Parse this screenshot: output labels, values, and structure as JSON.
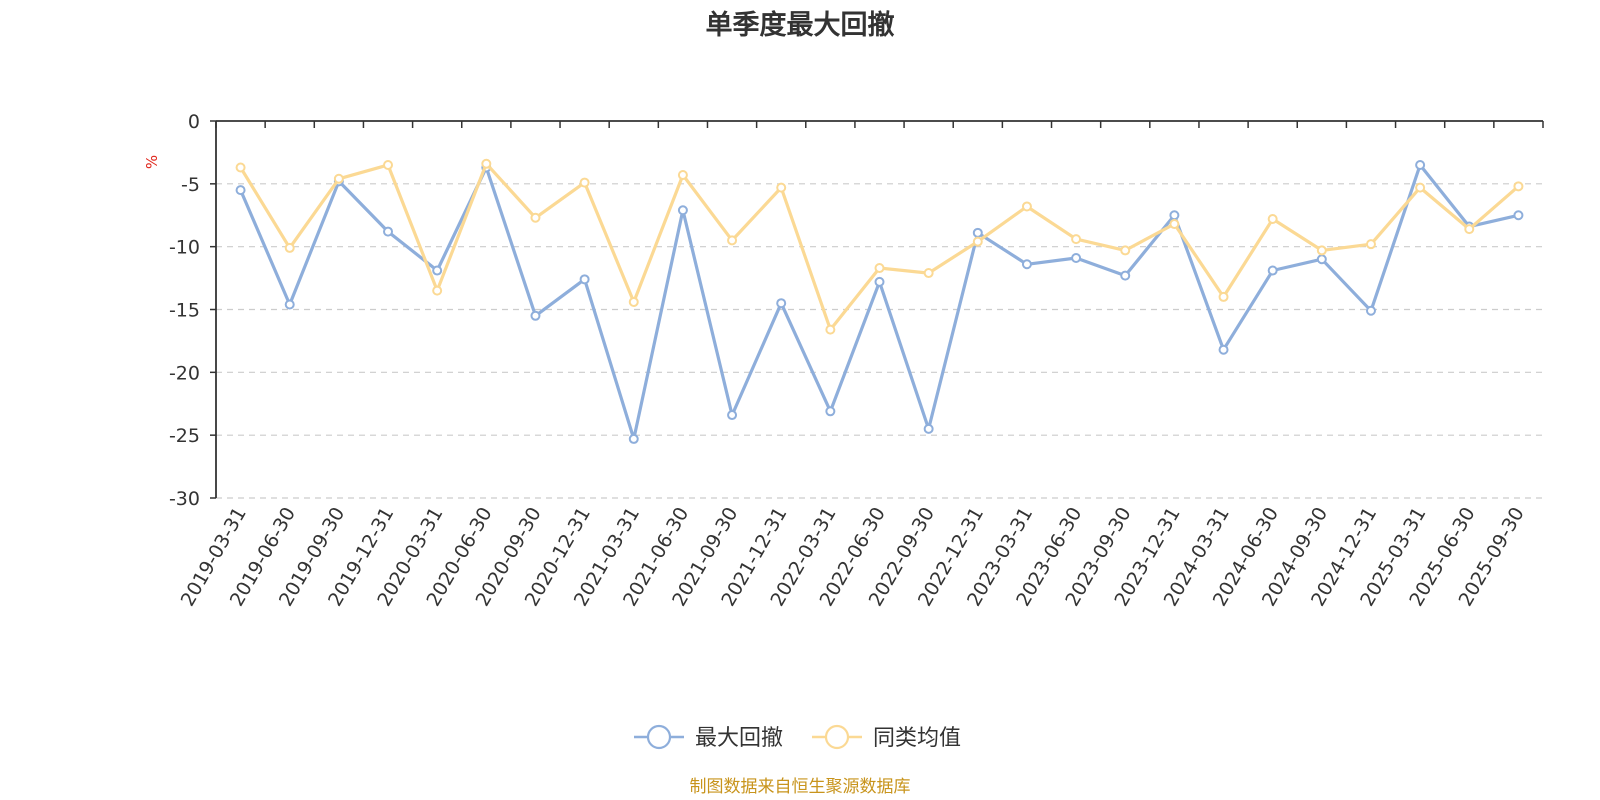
{
  "chart_data": {
    "type": "line",
    "title": "单季度最大回撤",
    "ylabel": "%",
    "ylim": [
      -30,
      0
    ],
    "yticks": [
      0,
      -5,
      -10,
      -15,
      -20,
      -25,
      -30
    ],
    "grid": true,
    "legend_position": "bottom-center",
    "categories": [
      "2019-03-31",
      "2019-06-30",
      "2019-09-30",
      "2019-12-31",
      "2020-03-31",
      "2020-06-30",
      "2020-09-30",
      "2020-12-31",
      "2021-03-31",
      "2021-06-30",
      "2021-09-30",
      "2021-12-31",
      "2022-03-31",
      "2022-06-30",
      "2022-09-30",
      "2022-12-31",
      "2023-03-31",
      "2023-06-30",
      "2023-09-30",
      "2023-12-31",
      "2024-03-31",
      "2024-06-30",
      "2024-09-30",
      "2024-12-31",
      "2025-03-31",
      "2025-06-30",
      "2025-09-30"
    ],
    "series": [
      {
        "name": "最大回撤",
        "color": "#8eaedb",
        "values": [
          -5.5,
          -14.6,
          -4.8,
          -8.8,
          -11.9,
          -3.7,
          -15.5,
          -12.6,
          -25.3,
          -7.1,
          -23.4,
          -14.5,
          -23.1,
          -12.8,
          -24.5,
          -8.9,
          -11.4,
          -10.9,
          -12.3,
          -7.5,
          -18.2,
          -11.9,
          -11.0,
          -15.1,
          -3.5,
          -8.4,
          -7.5
        ]
      },
      {
        "name": "同类均值",
        "color": "#fbd994",
        "values": [
          -3.7,
          -10.1,
          -4.6,
          -3.5,
          -13.5,
          -3.4,
          -7.7,
          -4.9,
          -14.4,
          -4.3,
          -9.5,
          -5.3,
          -16.6,
          -11.7,
          -12.1,
          -9.6,
          -6.8,
          -9.4,
          -10.3,
          -8.2,
          -14.0,
          -7.8,
          -10.3,
          -9.8,
          -5.3,
          -8.6,
          -5.2
        ]
      }
    ]
  },
  "source_note": "制图数据来自恒生聚源数据库"
}
